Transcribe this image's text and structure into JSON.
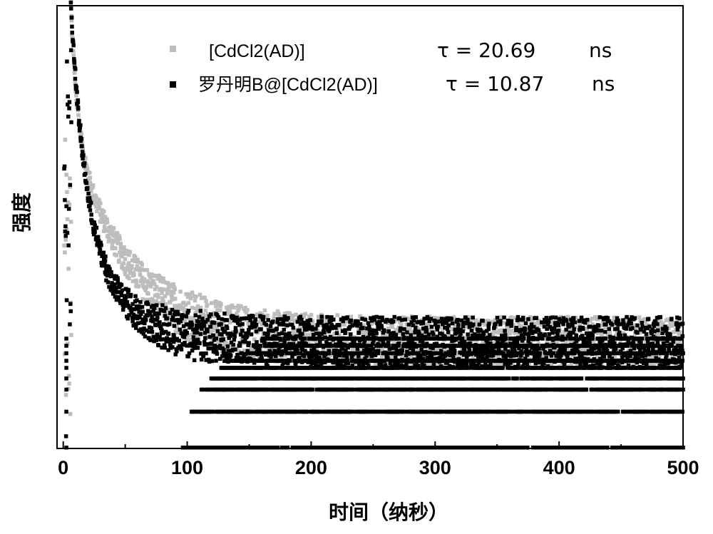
{
  "chart_data": {
    "type": "scatter",
    "title": "",
    "xlabel": "时间（纳秒）",
    "ylabel": "强度",
    "xlim": [
      -5,
      500
    ],
    "ylim": [
      0,
      1
    ],
    "x_ticks": [
      0,
      100,
      200,
      300,
      400,
      500
    ],
    "x_tick_labels": [
      "0",
      "100",
      "200",
      "300",
      "400",
      "500"
    ],
    "y_ticks_shown": false,
    "grid": false,
    "legend_position": "top-right",
    "series": [
      {
        "name": "[CdCl2(AD)]",
        "color": "#bdbdbd",
        "marker": "square",
        "tau_label": "τ  = 20.69",
        "tau_unit": "ns",
        "peak_x": 6,
        "decay_fast_amp": 0.36,
        "decay_fast_tau": 5,
        "decay_slow_amp": 0.64,
        "decay_slow_tau": 46,
        "baseline": 0.24
      },
      {
        "name": "罗丹明B@[CdCl2(AD)]",
        "color": "#000000",
        "marker": "square",
        "tau_label": "τ  = 10.87",
        "tau_unit": "ns",
        "peak_x": 6,
        "decay_fast_amp": 0.6,
        "decay_fast_tau": 11,
        "decay_slow_amp": 0.4,
        "decay_slow_tau": 34,
        "baseline": 0.24
      }
    ]
  }
}
